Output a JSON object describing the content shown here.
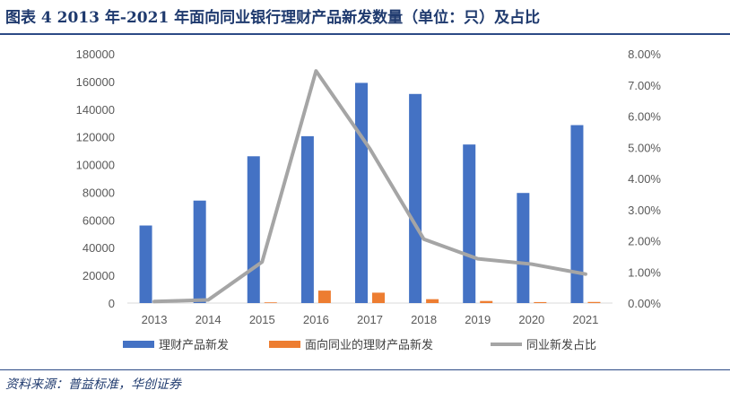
{
  "header": {
    "title": "图表 4   2013 年-2021 年面向同业银行理财产品新发数量（单位：只）及占比"
  },
  "footer": {
    "source": "资料来源：普益标准，华创证券"
  },
  "colors": {
    "rule": "#2c4a86",
    "title_text": "#1f3a6e"
  },
  "chart_data": {
    "type": "bar",
    "categories": [
      "2013",
      "2014",
      "2015",
      "2016",
      "2017",
      "2018",
      "2019",
      "2020",
      "2021"
    ],
    "series": [
      {
        "name": "理财产品新发",
        "type": "bar",
        "axis": "left",
        "color": "#4472C4",
        "values": [
          56000,
          74000,
          106000,
          120500,
          159000,
          151000,
          114500,
          79500,
          128500
        ]
      },
      {
        "name": "面向同业的理财产品新发",
        "type": "bar",
        "axis": "left",
        "color": "#ED7D31",
        "values": [
          0,
          0,
          500,
          9000,
          7500,
          2800,
          1500,
          700,
          800
        ]
      },
      {
        "name": "同业新发占比",
        "type": "line",
        "axis": "right",
        "color": "#A5A5A5",
        "values": [
          0.0005,
          0.001,
          0.0132,
          0.0745,
          0.0495,
          0.0205,
          0.0142,
          0.0125,
          0.0093
        ]
      }
    ],
    "yleft": {
      "lim": [
        0,
        180000
      ],
      "step": 20000,
      "ticks": [
        "0",
        "20000",
        "40000",
        "60000",
        "80000",
        "100000",
        "120000",
        "140000",
        "160000",
        "180000"
      ]
    },
    "yright": {
      "lim": [
        0,
        0.08
      ],
      "step": 0.01,
      "ticks": [
        "0.00%",
        "1.00%",
        "2.00%",
        "3.00%",
        "4.00%",
        "5.00%",
        "6.00%",
        "7.00%",
        "8.00%"
      ]
    },
    "grid": false,
    "legend": "bottom"
  }
}
